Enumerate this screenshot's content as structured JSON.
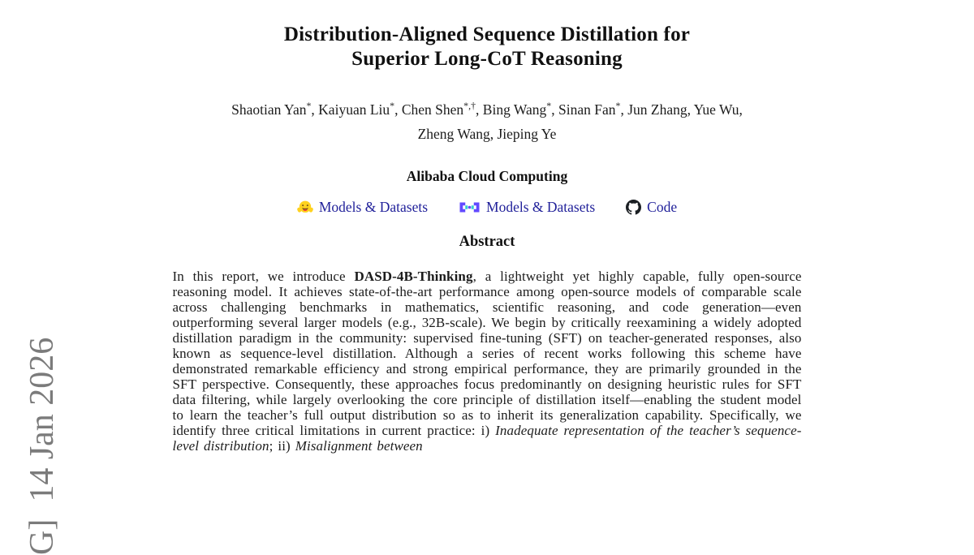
{
  "arxiv_stamp": {
    "visible_text": "G]  14 Jan 2026",
    "color": "#7b7b7b"
  },
  "title": {
    "line1": "Distribution-Aligned Sequence Distillation for",
    "line2": "Superior Long-CoT Reasoning"
  },
  "authors": {
    "line1_segments": [
      {
        "text": "Shaotian Yan"
      },
      {
        "text": "*",
        "style": "sup"
      },
      {
        "text": ", Kaiyuan Liu"
      },
      {
        "text": "*",
        "style": "sup"
      },
      {
        "text": ", Chen Shen"
      },
      {
        "text": "*,†",
        "style": "sup"
      },
      {
        "text": ", Bing Wang"
      },
      {
        "text": "*",
        "style": "sup"
      },
      {
        "text": ", Sinan Fan"
      },
      {
        "text": "*",
        "style": "sup"
      },
      {
        "text": ", Jun Zhang, Yue Wu,"
      }
    ],
    "line2": "Zheng Wang, Jieping Ye"
  },
  "affiliation": "Alibaba Cloud Computing",
  "links": [
    {
      "icon": "huggingface-logo",
      "label": "Models & Datasets"
    },
    {
      "icon": "modelscope-logo",
      "label": "Models & Datasets"
    },
    {
      "icon": "github-logo",
      "label": "Code"
    }
  ],
  "link_color": "#21219a",
  "icon_colors": {
    "huggingface_yellow": "#FFD21E",
    "modelscope_purple": "#624AFF",
    "modelscope_teal": "#36CED0",
    "github_black": "#1b1f23"
  },
  "abstract": {
    "heading": "Abstract",
    "segments": [
      {
        "text": "In this report, we introduce "
      },
      {
        "text": "DASD-4B-Thinking",
        "style": "bold"
      },
      {
        "text": ", a lightweight yet highly capable, fully open-source reasoning model. It achieves state-of-the-art performance among open-source models of comparable scale across challenging benchmarks in mathematics, scientific reasoning, and code generation—even outperforming several larger models (e.g., 32B-scale). We begin by critically reexamining a widely adopted distillation paradigm in the community: supervised fine-tuning (SFT) on teacher-generated responses, also known as sequence-level distillation. Although a series of recent works following this scheme have demonstrated remarkable efficiency and strong empirical performance, they are primarily grounded in the SFT perspective. Consequently, these approaches focus predominantly on designing heuristic rules for SFT data filtering, while largely overlooking the core principle of distillation itself—enabling the student model to learn the teacher’s full output distribution so as to inherit its generalization capability. Specifically, we identify three critical limitations in current practice: i) "
      },
      {
        "text": "Inadequate representation of the teacher’s sequence-level distribution",
        "style": "italic"
      },
      {
        "text": "; ii) "
      },
      {
        "text": "Misalignment between",
        "style": "italic"
      }
    ]
  }
}
